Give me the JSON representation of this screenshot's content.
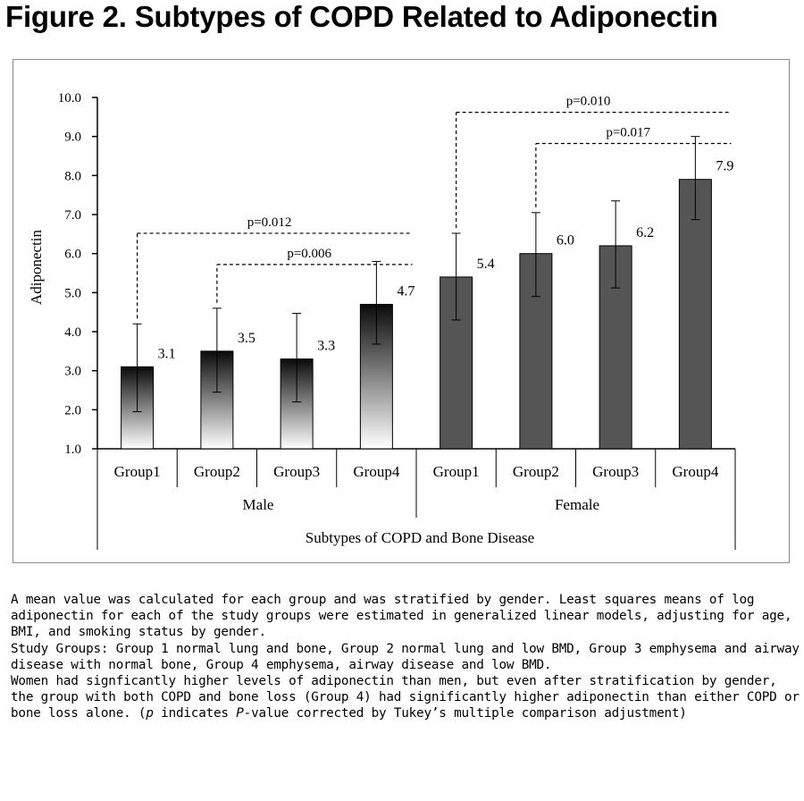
{
  "figure": {
    "title": "Figure 2. Subtypes of COPD Related to Adiponectin"
  },
  "chart_data": {
    "type": "bar",
    "categories": [
      "Group1",
      "Group2",
      "Group3",
      "Group4",
      "Group1",
      "Group2",
      "Group3",
      "Group4"
    ],
    "groups": [
      "Male",
      "Female"
    ],
    "values": [
      3.1,
      3.5,
      3.3,
      4.7,
      5.4,
      6.0,
      6.2,
      7.9
    ],
    "value_labels": [
      "3.1",
      "3.5",
      "3.3",
      "4.7",
      "5.4",
      "6.0",
      "6.2",
      "7.9"
    ],
    "error_low": [
      1.95,
      2.45,
      2.2,
      3.68,
      4.3,
      4.9,
      5.12,
      6.87
    ],
    "error_high": [
      4.2,
      4.6,
      4.47,
      5.8,
      6.52,
      7.05,
      7.35,
      9.0
    ],
    "ylabel": "Adiponectin",
    "xlabel": "Subtypes of COPD and Bone Disease",
    "ylim": [
      1.0,
      10.0
    ],
    "yticks": [
      "1.0",
      "2.0",
      "3.0",
      "4.0",
      "5.0",
      "6.0",
      "7.0",
      "8.0",
      "9.0",
      "10.0"
    ],
    "colors": {
      "male_fill_top": "#0a0a0a",
      "male_fill_bottom": "#ffffff",
      "female_fill": "#555555",
      "axis": "#000000"
    },
    "annotations": [
      {
        "label": "p=0.012",
        "from_bar": 0,
        "to_bar": 3,
        "level": 6.52
      },
      {
        "label": "p=0.006",
        "from_bar": 1,
        "to_bar": 3,
        "level": 5.72
      },
      {
        "label": "p=0.010",
        "from_bar": 4,
        "to_bar": 7,
        "level": 9.62
      },
      {
        "label": "p=0.017",
        "from_bar": 5,
        "to_bar": 7,
        "level": 8.82
      }
    ]
  },
  "caption": {
    "p1": "A mean value was calculated for each group and was stratified by gender.  Least squares means of log adiponectin for each of the study groups were estimated in generalized linear models, adjusting for age, BMI, and smoking status by gender.",
    "p2": "Study Groups: Group 1 normal lung and bone, Group 2 normal lung and low BMD, Group 3 emphysema and airway disease with normal bone, Group 4 emphysema, airway disease and low BMD.",
    "p3_a": "Women had signficantly higher levels of adiponectin than men, but even after stratification by gender, the group with both COPD and bone loss (Group 4) had significantly higher adiponectin than either COPD or bone loss alone. (",
    "p3_p": "p",
    "p3_b": " indicates ",
    "p3_P": "P",
    "p3_c": "-value corrected by Tukey’s multiple comparison adjustment)"
  }
}
